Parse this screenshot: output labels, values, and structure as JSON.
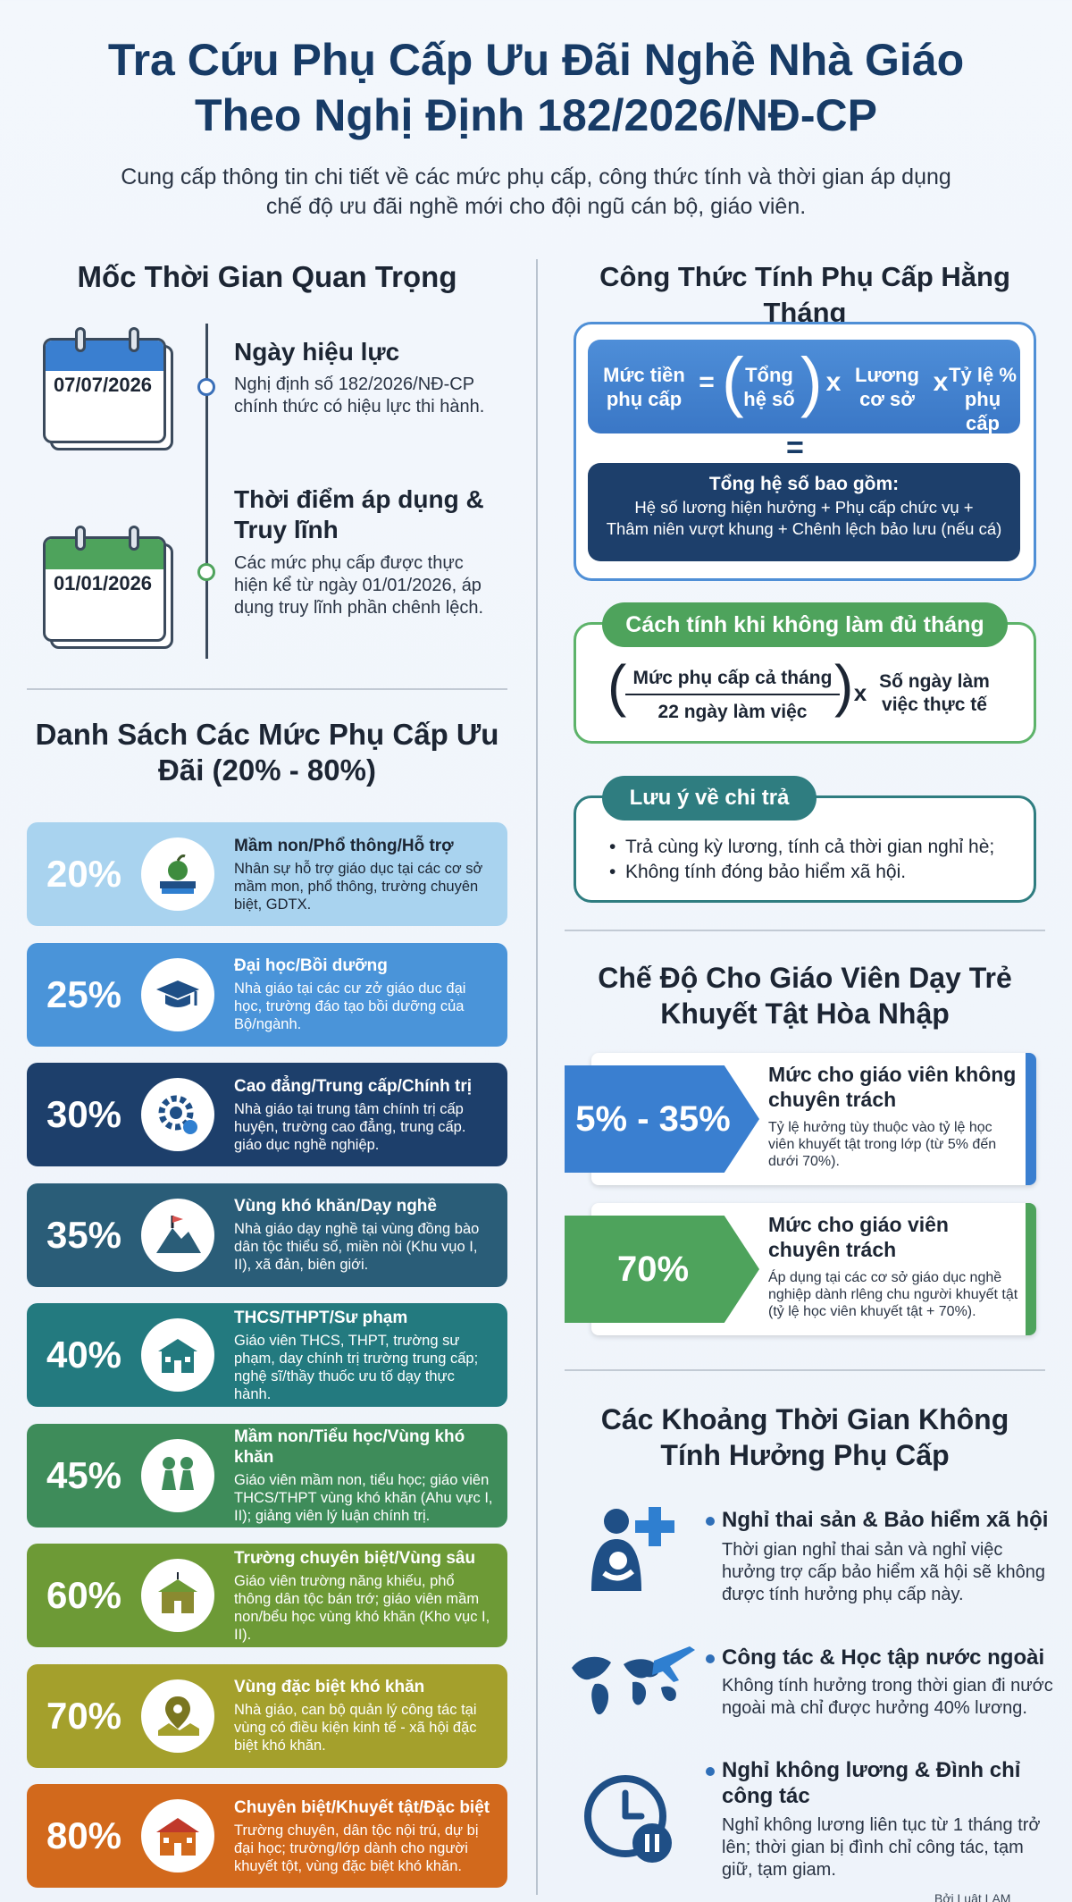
{
  "header": {
    "title_line1": "Tra Cứu Phụ Cấp Ưu Đãi Nghề Nhà Giáo",
    "title_line2": "Theo Nghị Định 182/2026/NĐ-CP",
    "subtitle_line1": "Cung cấp thông tin chi tiết về các mức phụ cấp, công thức tính và thời gian áp dụng",
    "subtitle_line2": "chế độ ưu đãi nghề mới cho đội ngũ cán bộ, giáo viên."
  },
  "timeline": {
    "title": "Mốc Thời Gian Quan Trọng",
    "items": [
      {
        "date": "07/07/2026",
        "heading": "Ngày hiệu lực",
        "text_line1": "Nghị định số 182/2026/NĐ-CP",
        "text_line2": "chính thức có hiệu lực thi hành.",
        "text_line3": ""
      },
      {
        "date": "01/01/2026",
        "heading": "Thời điểm áp dụng &",
        "heading2": "Truy lĩnh",
        "text_line1": "Các mức phụ cấp được thực",
        "text_line2": "hiện kể từ ngày 01/01/2026, áp",
        "text_line3": "dụng truy lĩnh phần chênh lệch."
      }
    ],
    "colors": [
      "#3a7fd0",
      "#4ea35c"
    ]
  },
  "rates": {
    "title_line1": "Danh Sách Các Mức Phụ Cấp Ưu",
    "title_line2": "Đãi (20% - 80%)",
    "items": [
      {
        "pct": "20%",
        "heading": "Mầm non/Phổ thông/Hỗ trợ",
        "desc": "Nhân sự hỗ trợ giáo dục tại các cơ sở mầm mon, phổ thông, trường chuyên biệt, GDTX.",
        "color": "#a9d3ef",
        "text_color": "#1c2533",
        "icon": "apple-books-icon"
      },
      {
        "pct": "25%",
        "heading": "Đại học/Bồi dưỡng",
        "desc": "Nhà giáo tại các cư zở giáo duc đại học, trường đáo tạo bồi dưỡng của Bộ/ngành.",
        "color": "#4a94d9",
        "text_color": "#ffffff",
        "icon": "graduation-cap-icon"
      },
      {
        "pct": "30%",
        "heading": "Cao đẳng/Trung cấp/Chính trị",
        "desc": "Nhà giáo tại trung tâm chính trị cấp huyện, trường cao đẳng, trung cấp. giáo dục nghề nghiệp.",
        "color": "#1d3f6b",
        "text_color": "#ffffff",
        "icon": "gear-wrench-icon"
      },
      {
        "pct": "35%",
        "heading": "Vùng khó khăn/Dạy nghề",
        "desc": "Nhà giáo dạy nghề tại vùng đồng bào dân tộc thiểu số, miền nòi (Khu vụo I, II), xã đản, biên giới.",
        "color": "#2a5d78",
        "text_color": "#ffffff",
        "icon": "mountain-flag-icon"
      },
      {
        "pct": "40%",
        "heading": "THCS/THPT/Sư phạm",
        "desc": "Giáo viên THCS, THPT, trường sư phạm, day chính trị trường trung cấp; nghệ sĩ/thầy thuốc ưu tố dạy thực hành.",
        "color": "#237a7f",
        "text_color": "#ffffff",
        "icon": "school-building-icon"
      },
      {
        "pct": "45%",
        "heading": "Mầm non/Tiểu học/Vùng khó khăn",
        "desc": "Giáo viên mầm non, tiểu học; giáo viên THCS/THPT vùng khó khăn (Ahu vực I, II); giảng viên lý luận chính trị.",
        "color": "#3e8c5a",
        "text_color": "#ffffff",
        "icon": "children-icon"
      },
      {
        "pct": "60%",
        "heading": "Trường chuyên biệt/Vùng sâu",
        "desc": "Giáo viên trường năng khiếu, phổ thông dân tộc bán trớ; giáo viên mầm non/bểu học vùng khó khăn (Kho vục I, II).",
        "color": "#6d9a36",
        "text_color": "#ffffff",
        "icon": "special-school-icon"
      },
      {
        "pct": "70%",
        "heading": "Vùng đặc biệt khó khăn",
        "desc": "Nhà giáo, can bộ quản lý công tác tại vùng có điều kiện kinh tế - xã hội đặc biệt khó khăn.",
        "color": "#a4a02c",
        "text_color": "#ffffff",
        "icon": "map-pin-icon"
      },
      {
        "pct": "80%",
        "heading": "Chuyên biệt/Khuyết tật/Đặc biệt",
        "desc": "Trường chuyên, dân tộc nội trú, dự bị đại học; trường/lớp dành cho người khuyết tột, vùng đặc biệt khó khăn.",
        "color": "#d2691c",
        "text_color": "#ffffff",
        "icon": "school-red-icon"
      }
    ]
  },
  "formula": {
    "title": "Công Thức Tính Phụ Cấp Hằng Tháng",
    "term1_line1": "Mức tiền",
    "term1_line2": "phụ cấp",
    "eq": "=",
    "term2_line1": "Tổng",
    "term2_line2": "hệ số",
    "times": "x",
    "term3_line1": "Lương",
    "term3_line2": "cơ sở",
    "term4_line1": "Tỷ lệ %",
    "term4_line2": "phụ cấp",
    "total_heading": "Tổng hệ số bao gồm:",
    "total_line1": "Hệ số lương hiện hưởng + Phụ cấp chức vụ +",
    "total_line2": "Thâm niên vượt khung + Chênh lệch bảo lưu (nếu cá)"
  },
  "partial_month": {
    "title": "Cách tính khi không làm đủ tháng",
    "numerator": "Mức phụ cấp cả tháng",
    "denominator": "22 ngày làm việc",
    "times": "x",
    "right_line1": "Số ngày làm",
    "right_line2": "việc thực tế"
  },
  "payment_note": {
    "title": "Lưu ý về chi trả",
    "items": [
      "Trả cùng kỳ lương, tính cả thời gian nghỉ hè;",
      "Không tính đóng bảo hiểm xã hội."
    ]
  },
  "disability": {
    "title_line1": "Chế Độ Cho Giáo Viên Dạy Trẻ",
    "title_line2": "Khuyết Tật Hòa Nhập",
    "items": [
      {
        "rate": "5% - 35%",
        "heading": "Mức cho giáo viên không chuyên trách",
        "desc": "Tỷ lệ hưởng tùy thuộc vào tỷ lệ học viên khuyết tật trong lớp (từ 5% đến dưới 70%).",
        "color": "#3a7fd0"
      },
      {
        "rate": "70%",
        "heading": "Mức cho giáo viên chuyên trách",
        "desc": "Áp dụng tại các cơ sở giáo dục nghề nghiệp dành rlêng chu người khuyết tật (tỷ lệ học viên khuyết tật + 70%).",
        "color": "#4ea35c"
      }
    ]
  },
  "excluded": {
    "title_line1": "Các Khoảng Thời Gian Không",
    "title_line2": "Tính Hưởng Phụ Cấp",
    "items": [
      {
        "heading": "Nghỉ thai sản & Bảo hiểm xã hội",
        "heading2": "",
        "d1": "Thời gian nghỉ thai sản và nghỉ việc",
        "d2": "hưởng trợ cấp bảo hiểm xã hội sẽ không",
        "d3": "được tính hưởng phụ cấp này.",
        "icon": "maternity-icon"
      },
      {
        "heading": "Công tác & Học tập nước ngoài",
        "heading2": "",
        "d1": "Không tính hưởng trong thời gian đi nước",
        "d2": "ngoài mà chỉ được hưởng 40% lương.",
        "d3": "",
        "icon": "world-plane-icon"
      },
      {
        "heading": "Nghỉ không lương & Đình chỉ",
        "heading2": "công tác",
        "d1": "Nghỉ không lương liên tục từ 1 tháng trở",
        "d2": "lên; thời gian bị đình chỉ công tác, tạm",
        "d3": "giữ, tạm giam.",
        "icon": "clock-pause-icon"
      }
    ]
  },
  "footer": {
    "text": "Bởi Luật LAM"
  }
}
